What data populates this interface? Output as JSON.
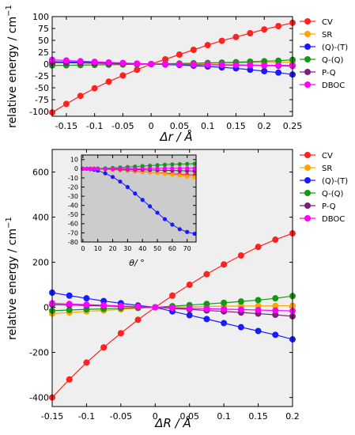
{
  "chart_data": [
    {
      "type": "line",
      "xlabel": "Δr / Å",
      "ylabel": "relative energy / cm",
      "ylabel_exponent": "−1",
      "xlim": [
        -0.175,
        0.25
      ],
      "ylim": [
        -110,
        100
      ],
      "xticks": [
        -0.15,
        -0.1,
        -0.05,
        0,
        0.05,
        0.1,
        0.15,
        0.2,
        0.25
      ],
      "xtick_labels": [
        "-0.15",
        "-0.1",
        "-0.05",
        "0",
        "0.05",
        "0.1",
        "0.15",
        "0.2",
        "0.25"
      ],
      "yticks": [
        -100,
        -75,
        -50,
        -25,
        0,
        25,
        50,
        75,
        100
      ],
      "ytick_labels": [
        "-100",
        "-75",
        "-50",
        "-25",
        "0",
        "25",
        "50",
        "75",
        "100"
      ],
      "legend": "right",
      "x": [
        -0.175,
        -0.15,
        -0.125,
        -0.1,
        -0.075,
        -0.05,
        -0.025,
        0,
        0.025,
        0.05,
        0.075,
        0.1,
        0.125,
        0.15,
        0.175,
        0.2,
        0.225,
        0.25
      ],
      "series": [
        {
          "name": "CV",
          "color": "#ff2020",
          "values": [
            -102,
            -84,
            -67,
            -51,
            -37,
            -24,
            -12,
            0,
            10,
            20,
            30,
            40,
            49,
            57,
            65,
            73,
            80,
            87
          ]
        },
        {
          "name": "SR",
          "color": "#ffa500",
          "values": [
            -3,
            -2.6,
            -2.2,
            -1.8,
            -1.4,
            -1,
            -0.5,
            0,
            0.4,
            0.8,
            1.2,
            1.6,
            2,
            2.4,
            2.8,
            3.2,
            3.6,
            4
          ]
        },
        {
          "name": "(Q)-(T)",
          "color": "#1a1aff",
          "values": [
            5,
            4.5,
            4,
            3.4,
            2.6,
            1.8,
            0.9,
            0,
            -1,
            -2,
            -3.5,
            -5,
            -7,
            -9,
            -12,
            -15,
            -18,
            -22
          ]
        },
        {
          "name": "Q-(Q)",
          "color": "#119911",
          "values": [
            -3,
            -2.6,
            -2.2,
            -1.8,
            -1.3,
            -0.9,
            -0.4,
            0,
            0.6,
            1.2,
            1.8,
            2.4,
            3.2,
            4,
            5,
            6,
            7,
            9
          ]
        },
        {
          "name": "P-Q",
          "color": "#7a1f7a",
          "values": [
            3,
            2.6,
            2.2,
            1.8,
            1.3,
            0.9,
            0.4,
            0,
            -0.4,
            -0.8,
            -1.2,
            -1.6,
            -2,
            -2.4,
            -2.8,
            -3.2,
            -3.6,
            -4
          ]
        },
        {
          "name": "DBOC",
          "color": "#ff00ff",
          "values": [
            9,
            7.5,
            6,
            4.8,
            3.5,
            2.3,
            1.1,
            0,
            -0.3,
            -0.6,
            -0.9,
            -1.2,
            -1.5,
            -1.8,
            -2.1,
            -2.4,
            -2.7,
            -3
          ]
        }
      ]
    },
    {
      "type": "line",
      "xlabel": "ΔR / Å",
      "ylabel": "relative energy / cm",
      "ylabel_exponent": "−1",
      "xlim": [
        -0.15,
        0.2
      ],
      "ylim": [
        -440,
        700
      ],
      "xticks": [
        -0.15,
        -0.1,
        -0.05,
        0,
        0.05,
        0.1,
        0.15,
        0.2
      ],
      "xtick_labels": [
        "-0.15",
        "-0.1",
        "-0.05",
        "0",
        "0.05",
        "0.1",
        "0.15",
        "0.2"
      ],
      "yticks": [
        -400,
        -200,
        0,
        200,
        400,
        600
      ],
      "ytick_labels": [
        "-400",
        "-200",
        "0",
        "200",
        "400",
        "600"
      ],
      "legend": "right",
      "x": [
        -0.15,
        -0.125,
        -0.1,
        -0.075,
        -0.05,
        -0.025,
        0,
        0.025,
        0.05,
        0.075,
        0.1,
        0.125,
        0.15,
        0.175,
        0.2
      ],
      "series": [
        {
          "name": "CV",
          "color": "#ff2020",
          "values": [
            -400,
            -320,
            -245,
            -178,
            -115,
            -55,
            0,
            52,
            100,
            147,
            190,
            230,
            268,
            300,
            328
          ]
        },
        {
          "name": "SR",
          "color": "#ffa500",
          "values": [
            -28,
            -23,
            -18,
            -14,
            -9,
            -4,
            0,
            2,
            3,
            4,
            5,
            5.5,
            6,
            6.5,
            7
          ]
        },
        {
          "name": "(Q)-(T)",
          "color": "#1a1aff",
          "values": [
            65,
            52,
            40,
            28,
            18,
            8,
            0,
            -18,
            -35,
            -52,
            -70,
            -88,
            -105,
            -122,
            -142
          ]
        },
        {
          "name": "Q-(Q)",
          "color": "#119911",
          "values": [
            -15,
            -12,
            -9,
            -7,
            -4,
            -2,
            0,
            5,
            10,
            15,
            20,
            26,
            32,
            40,
            50
          ]
        },
        {
          "name": "P-Q",
          "color": "#7a1f7a",
          "values": [
            12,
            10,
            8,
            6,
            4,
            2,
            0,
            -5,
            -9,
            -14,
            -18,
            -23,
            -28,
            -33,
            -40
          ]
        },
        {
          "name": "DBOC",
          "color": "#ff00ff",
          "values": [
            18,
            15,
            12,
            9,
            6,
            3,
            0,
            -2,
            -4,
            -6,
            -8,
            -10,
            -12,
            -14,
            -16
          ]
        }
      ]
    },
    {
      "type": "line",
      "role": "inset",
      "xlabel": "θ/ °",
      "xlim": [
        -1,
        76
      ],
      "ylim": [
        -80,
        15
      ],
      "xticks": [
        0,
        10,
        20,
        30,
        40,
        50,
        60,
        70
      ],
      "xtick_labels": [
        "0",
        "10",
        "20",
        "30",
        "40",
        "50",
        "60",
        "70"
      ],
      "yticks": [
        10,
        0,
        -10,
        -20,
        -30,
        -40,
        -50,
        -60,
        -70,
        -80
      ],
      "ytick_labels": [
        "10",
        "0",
        "-10",
        "-20",
        "-30",
        "-40",
        "-50",
        "-60",
        "-70",
        "-80"
      ],
      "x": [
        0,
        2.5,
        5,
        7.5,
        10,
        15,
        20,
        25,
        30,
        35,
        40,
        45,
        50,
        55,
        60,
        65,
        70,
        75
      ],
      "series": [
        {
          "name": "CV",
          "color": "#ff2020",
          "values": [
            0,
            0,
            0,
            -0.1,
            -0.2,
            -0.5,
            -0.9,
            -1.4,
            -2,
            -2.6,
            -3.2,
            -3.8,
            -4.4,
            -5,
            -5.5,
            -6,
            -6.5,
            -7
          ]
        },
        {
          "name": "SR",
          "color": "#ffa500",
          "values": [
            0,
            0,
            0,
            0,
            -0.1,
            -0.3,
            -0.6,
            -1,
            -1.5,
            -2.1,
            -2.8,
            -3.6,
            -4.5,
            -5.5,
            -6.5,
            -7.5,
            -8.5,
            -9.5
          ]
        },
        {
          "name": "(Q)-(T)",
          "color": "#1a1aff",
          "values": [
            0,
            0,
            -0.5,
            -1,
            -2,
            -5,
            -9,
            -14,
            -20,
            -27,
            -34,
            -41,
            -48,
            -55,
            -61,
            -66,
            -69,
            -71
          ]
        },
        {
          "name": "Q-(Q)",
          "color": "#119911",
          "values": [
            0,
            0,
            0,
            0.1,
            0.2,
            0.5,
            0.9,
            1.4,
            1.9,
            2.4,
            2.9,
            3.4,
            3.9,
            4.4,
            4.8,
            5.1,
            5.3,
            5.5
          ]
        },
        {
          "name": "P-Q",
          "color": "#7a1f7a",
          "values": [
            0,
            0,
            0,
            0,
            -0.1,
            -0.2,
            -0.3,
            -0.5,
            -0.7,
            -0.9,
            -1.1,
            -1.3,
            -1.5,
            -1.7,
            -1.9,
            -2.1,
            -2.3,
            -2.5
          ]
        },
        {
          "name": "DBOC",
          "color": "#ff00ff",
          "values": [
            0,
            0,
            0,
            0,
            0,
            0,
            0.1,
            0.1,
            0.2,
            0.2,
            0.3,
            0.3,
            0.3,
            0.4,
            0.4,
            0.4,
            0.5,
            0.5
          ]
        }
      ]
    }
  ]
}
